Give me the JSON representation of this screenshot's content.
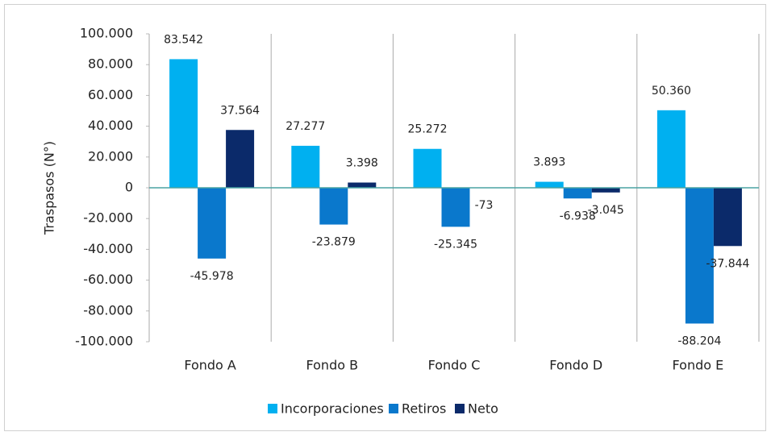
{
  "chart_data": {
    "type": "bar",
    "y_label": "Traspasos (N°)",
    "categories": [
      "Fondo A",
      "Fondo B",
      "Fondo C",
      "Fondo D",
      "Fondo E"
    ],
    "series": [
      {
        "name": "Incorporaciones",
        "color": "#00b0f0",
        "values": [
          83542,
          27277,
          25272,
          3893,
          50360
        ],
        "value_labels": [
          "83.542",
          "27.277",
          "25.272",
          "3.893",
          "50.360"
        ]
      },
      {
        "name": "Retiros",
        "color": "#0a78cc",
        "values": [
          -45978,
          -23879,
          -25345,
          -6938,
          -88204
        ],
        "value_labels": [
          "-45.978",
          "-23.879",
          "-25.345",
          "-6.938",
          "-88.204"
        ]
      },
      {
        "name": "Neto",
        "color": "#0b2a6a",
        "values": [
          37564,
          3398,
          -73,
          -3045,
          -37844
        ],
        "value_labels": [
          "37.564",
          "3.398",
          "-73",
          "-3.045",
          "-37.844"
        ]
      }
    ],
    "ylim": [
      -100000,
      100000
    ],
    "yticks": [
      {
        "value": -100000,
        "label": "-100.000"
      },
      {
        "value": -80000,
        "label": "-80.000"
      },
      {
        "value": -60000,
        "label": "-60.000"
      },
      {
        "value": -40000,
        "label": "-40.000"
      },
      {
        "value": -20000,
        "label": "-20.000"
      },
      0,
      {
        "value": 20000,
        "label": "20.000"
      },
      {
        "value": 40000,
        "label": "40.000"
      },
      {
        "value": 60000,
        "label": "60.000"
      },
      {
        "value": 80000,
        "label": "80.000"
      },
      {
        "value": 100000,
        "label": "100.000"
      }
    ],
    "legend": "bottom"
  }
}
